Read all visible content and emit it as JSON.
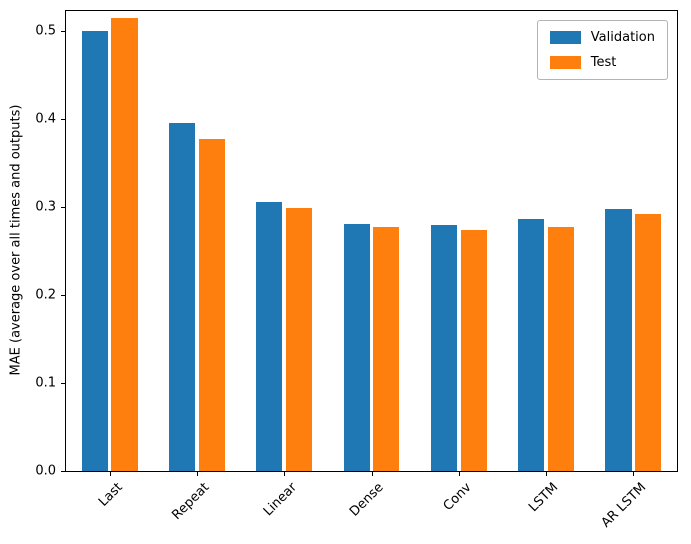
{
  "chart_data": {
    "type": "bar",
    "categories": [
      "Last",
      "Repeat",
      "Linear",
      "Dense",
      "Conv",
      "LSTM",
      "AR LSTM"
    ],
    "series": [
      {
        "name": "Validation",
        "color": "#1f77b4",
        "values": [
          0.5,
          0.395,
          0.306,
          0.281,
          0.28,
          0.286,
          0.298
        ]
      },
      {
        "name": "Test",
        "color": "#ff7f0e",
        "values": [
          0.515,
          0.377,
          0.299,
          0.277,
          0.274,
          0.277,
          0.292
        ]
      }
    ],
    "title": "",
    "xlabel": "",
    "ylabel": "MAE (average over all times and outputs)",
    "ylim": [
      0,
      0.5225
    ],
    "yticks": [
      0.0,
      0.1,
      0.2,
      0.3,
      0.4,
      0.5
    ],
    "ytick_labels": [
      "0.0",
      "0.1",
      "0.2",
      "0.3",
      "0.4",
      "0.5"
    ],
    "legend_position": "upper right",
    "grid": false,
    "bar_width_fraction": 0.3,
    "bar_offset_fraction": 0.17
  }
}
